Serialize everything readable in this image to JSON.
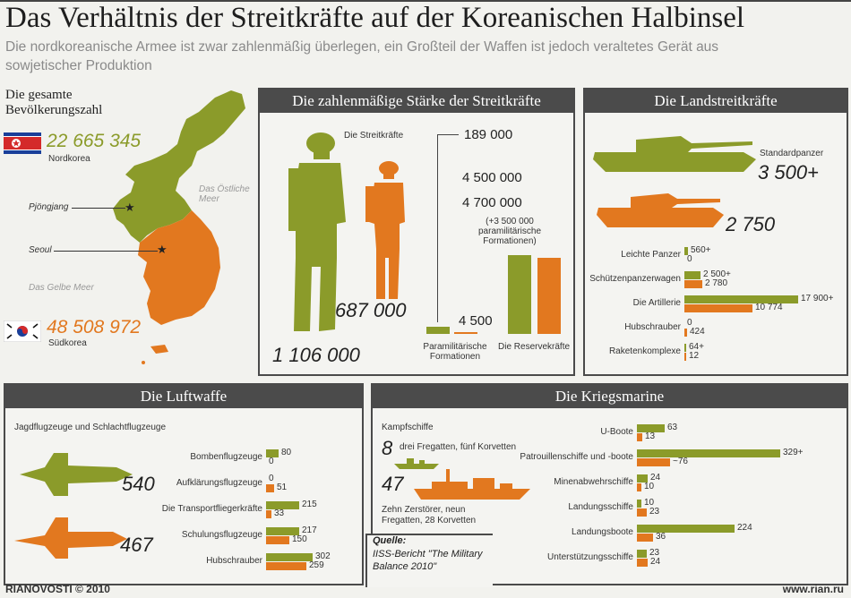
{
  "header": {
    "title": "Das Verhältnis der Streitkräfte auf der Koreanischen Halbinsel",
    "subtitle": "Die nordkoreanische Armee ist zwar zahlenmäßig überlegen, ein Großteil der Waffen ist jedoch veraltetes Gerät aus sowjetischer Produktion"
  },
  "population": {
    "heading": "Die gesamte Bevölkerungszahl",
    "north_value": "22 665 345",
    "north_label": "Nordkorea",
    "south_value": "48 508 972",
    "south_label": "Südkorea",
    "pyongyang": "Pjöngjang",
    "seoul": "Seoul",
    "east_sea": "Das Östliche Meer",
    "yellow_sea": "Das Gelbe Meer"
  },
  "strength": {
    "heading": "Die zahlenmäßige Stärke der Streitkräfte",
    "forces_label": "Die Streitkräfte",
    "north_forces": "1 106 000",
    "south_forces": "687 000",
    "para_north": "189 000",
    "para_south": "4 500",
    "para_label": "Paramilitärische Formationen",
    "reserve_north": "4 700 000",
    "reserve_south": "4 500 000",
    "reserve_note": "(+3 500 000 paramilitärische Formationen)",
    "reserve_label": "Die Reservekräfte"
  },
  "land": {
    "heading": "Die Landstreitkräfte",
    "tank_label": "Standardpanzer",
    "tank_north": "3 500+",
    "tank_south": "2 750"
  },
  "air": {
    "heading": "Die Luftwaffe",
    "fighters_label": "Jagdflugzeuge und Schlachtflugzeuge",
    "fighters_north": "540",
    "fighters_south": "467"
  },
  "navy": {
    "heading": "Die Kriegsmarine",
    "combat_label": "Kampfschiffe",
    "combat_north": "8",
    "combat_north_desc": "drei Fregatten, fünf Korvetten",
    "combat_south": "47",
    "combat_south_desc": "Zehn Zerstörer, neun Fregatten, 28 Korvetten"
  },
  "source": {
    "label": "Quelle:",
    "text": "IISS-Bericht \"The Military Balance 2010\""
  },
  "footer": {
    "left": "RIANOVOSTI © 2010",
    "right": "www.rian.ru"
  },
  "colors": {
    "north": "#8b9b2a",
    "south": "#e2781f",
    "header": "#4b4b4b"
  },
  "chart_data": [
    {
      "type": "bar",
      "title": "Die Landstreitkräfte",
      "categories": [
        "Leichte Panzer",
        "Schützenpanzerwagen",
        "Die Artillerie",
        "Hubschrauber",
        "Raketenkomplexe"
      ],
      "series": [
        {
          "values": [
            560,
            2500,
            17900,
            0,
            64
          ],
          "labels": [
            "560+",
            "2 500+",
            "17 900+",
            "0",
            "64+"
          ]
        },
        {
          "values": [
            0,
            2780,
            10774,
            424,
            12
          ],
          "labels": [
            "0",
            "2 780",
            "10 774",
            "424",
            "12"
          ]
        }
      ]
    },
    {
      "type": "bar",
      "title": "Die Luftwaffe",
      "categories": [
        "Bombenflugzeuge",
        "Aufklärungsflugzeuge",
        "Die Transportfliegerkräfte",
        "Schulungsflugzeuge",
        "Hubschrauber"
      ],
      "series": [
        {
          "values": [
            80,
            0,
            215,
            217,
            302
          ],
          "labels": [
            "80",
            "0",
            "215",
            "217",
            "302"
          ]
        },
        {
          "values": [
            0,
            51,
            33,
            150,
            259
          ],
          "labels": [
            "0",
            "51",
            "33",
            "150",
            "259"
          ]
        }
      ]
    },
    {
      "type": "bar",
      "title": "Die Kriegsmarine",
      "categories": [
        "U-Boote",
        "Patrouillenschiffe und -boote",
        "Minenabwehrschiffe",
        "Landungsschiffe",
        "Landungsboote",
        "Unterstützungsschiffe"
      ],
      "series": [
        {
          "values": [
            63,
            329,
            24,
            10,
            224,
            23
          ],
          "labels": [
            "63",
            "329+",
            "24",
            "10",
            "224",
            "23"
          ]
        },
        {
          "values": [
            13,
            76,
            10,
            23,
            36,
            24
          ],
          "labels": [
            "13",
            "~76",
            "10",
            "23",
            "36",
            "24"
          ]
        }
      ]
    },
    {
      "type": "bar",
      "title": "Die zahlenmäßige Stärke der Streitkräfte",
      "categories": [
        "Paramilitärische Formationen",
        "Die Reservekräfte"
      ],
      "series": [
        {
          "values": [
            189000,
            4700000
          ]
        },
        {
          "values": [
            4500,
            4500000
          ]
        }
      ]
    }
  ]
}
